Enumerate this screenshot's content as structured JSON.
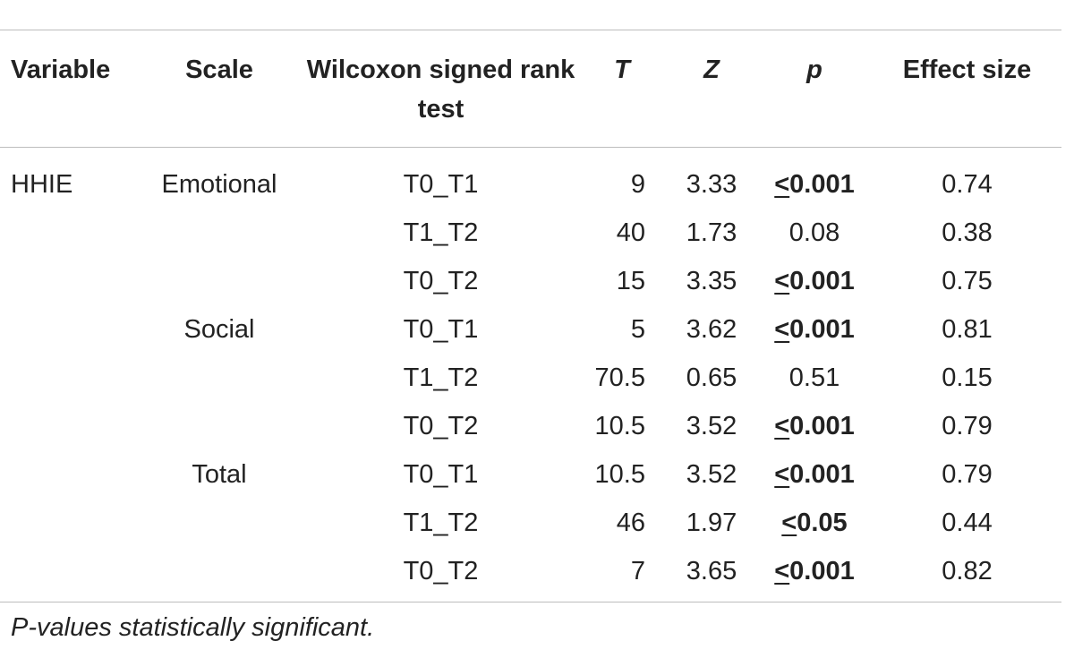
{
  "table": {
    "headers": {
      "variable": "Variable",
      "scale": "Scale",
      "test": "Wilcoxon signed rank test",
      "T": "T",
      "Z": "Z",
      "p": "p",
      "effect": "Effect size"
    },
    "rows": [
      {
        "variable": "HHIE",
        "scale": "Emotional",
        "test": "T0_T1",
        "T": "9",
        "Z": "3.33",
        "p": "0.001",
        "p_prefix": "<",
        "significant": true,
        "effect": "0.74"
      },
      {
        "variable": "",
        "scale": "",
        "test": "T1_T2",
        "T": "40",
        "Z": "1.73",
        "p": "0.08",
        "p_prefix": "",
        "significant": false,
        "effect": "0.38"
      },
      {
        "variable": "",
        "scale": "",
        "test": "T0_T2",
        "T": "15",
        "Z": "3.35",
        "p": "0.001",
        "p_prefix": "<",
        "significant": true,
        "effect": "0.75"
      },
      {
        "variable": "",
        "scale": "Social",
        "test": "T0_T1",
        "T": "5",
        "Z": "3.62",
        "p": "0.001",
        "p_prefix": "<",
        "significant": true,
        "effect": "0.81"
      },
      {
        "variable": "",
        "scale": "",
        "test": "T1_T2",
        "T": "70.5",
        "Z": "0.65",
        "p": "0.51",
        "p_prefix": "",
        "significant": false,
        "effect": "0.15"
      },
      {
        "variable": "",
        "scale": "",
        "test": "T0_T2",
        "T": "10.5",
        "Z": "3.52",
        "p": "0.001",
        "p_prefix": "<",
        "significant": true,
        "effect": "0.79"
      },
      {
        "variable": "",
        "scale": "Total",
        "test": "T0_T1",
        "T": "10.5",
        "Z": "3.52",
        "p": "0.001",
        "p_prefix": "<",
        "significant": true,
        "effect": "0.79"
      },
      {
        "variable": "",
        "scale": "",
        "test": "T1_T2",
        "T": "46",
        "Z": "1.97",
        "p": "0.05",
        "p_prefix": "<",
        "significant": true,
        "effect": "0.44"
      },
      {
        "variable": "",
        "scale": "",
        "test": "T0_T2",
        "T": "7",
        "Z": "3.65",
        "p": "0.001",
        "p_prefix": "<",
        "significant": true,
        "effect": "0.82"
      }
    ]
  },
  "footnote": "P-values statistically significant."
}
